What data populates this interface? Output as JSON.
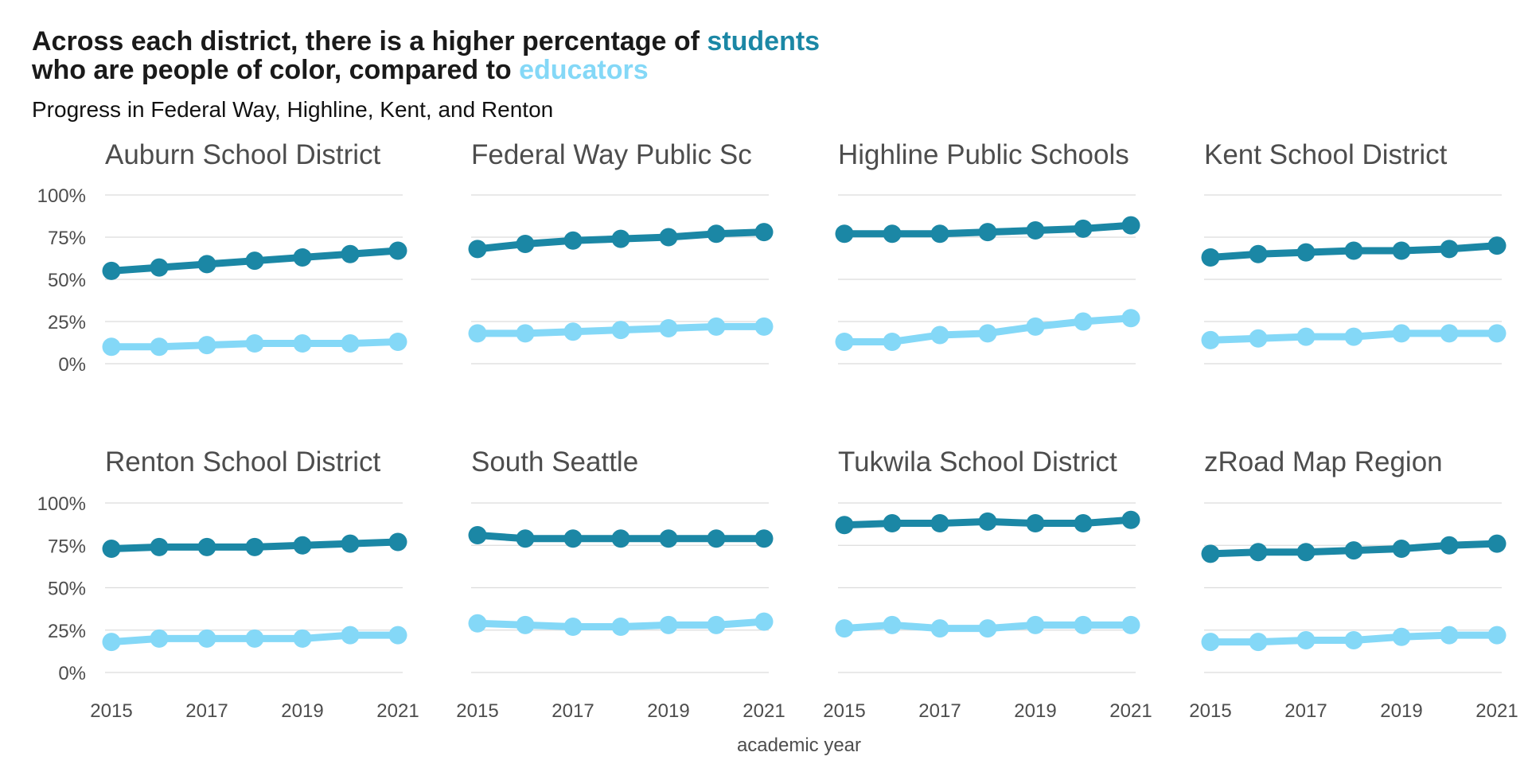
{
  "title": {
    "line1_prefix": "Across each district, there is a higher percentage of ",
    "line1_highlight": "students",
    "line2_prefix": "who are people of color, compared to ",
    "line2_highlight": "educators"
  },
  "subtitle": "Progress in Federal Way, Highline, Kent, and Renton",
  "colors": {
    "students": "#1b87a5",
    "educators": "#84d8f7",
    "grid": "#dcdcdc",
    "text": "#4d4d4d"
  },
  "chart_data": {
    "type": "line",
    "facet": true,
    "xlabel": "academic year",
    "ylabel": "",
    "x": [
      2015,
      2016,
      2017,
      2018,
      2019,
      2020,
      2021
    ],
    "xticks": [
      "2015",
      "2017",
      "2019",
      "2021"
    ],
    "ylim": [
      0,
      100
    ],
    "yticks": [
      "0%",
      "25%",
      "50%",
      "75%",
      "100%"
    ],
    "grid": true,
    "panels": [
      {
        "title": "Auburn School District",
        "series": [
          {
            "key": "students",
            "values": [
              55,
              57,
              59,
              61,
              63,
              65,
              67
            ]
          },
          {
            "key": "educators",
            "values": [
              10,
              10,
              11,
              12,
              12,
              12,
              13
            ]
          }
        ]
      },
      {
        "title": "Federal Way Public Sc",
        "series": [
          {
            "key": "students",
            "values": [
              68,
              71,
              73,
              74,
              75,
              77,
              78
            ]
          },
          {
            "key": "educators",
            "values": [
              18,
              18,
              19,
              20,
              21,
              22,
              22
            ]
          }
        ]
      },
      {
        "title": "Highline Public Schools",
        "series": [
          {
            "key": "students",
            "values": [
              77,
              77,
              77,
              78,
              79,
              80,
              82
            ]
          },
          {
            "key": "educators",
            "values": [
              13,
              13,
              17,
              18,
              22,
              25,
              27
            ]
          }
        ]
      },
      {
        "title": "Kent School District",
        "series": [
          {
            "key": "students",
            "values": [
              63,
              65,
              66,
              67,
              67,
              68,
              70
            ]
          },
          {
            "key": "educators",
            "values": [
              14,
              15,
              16,
              16,
              18,
              18,
              18
            ]
          }
        ]
      },
      {
        "title": "Renton School District",
        "series": [
          {
            "key": "students",
            "values": [
              73,
              74,
              74,
              74,
              75,
              76,
              77
            ]
          },
          {
            "key": "educators",
            "values": [
              18,
              20,
              20,
              20,
              20,
              22,
              22
            ]
          }
        ]
      },
      {
        "title": "South Seattle",
        "series": [
          {
            "key": "students",
            "values": [
              81,
              79,
              79,
              79,
              79,
              79,
              79
            ]
          },
          {
            "key": "educators",
            "values": [
              29,
              28,
              27,
              27,
              28,
              28,
              30
            ]
          }
        ]
      },
      {
        "title": "Tukwila School District",
        "series": [
          {
            "key": "students",
            "values": [
              87,
              88,
              88,
              89,
              88,
              88,
              90
            ]
          },
          {
            "key": "educators",
            "values": [
              26,
              28,
              26,
              26,
              28,
              28,
              28
            ]
          }
        ]
      },
      {
        "title": "zRoad Map Region",
        "series": [
          {
            "key": "students",
            "values": [
              70,
              71,
              71,
              72,
              73,
              75,
              76
            ]
          },
          {
            "key": "educators",
            "values": [
              18,
              18,
              19,
              19,
              21,
              22,
              22
            ]
          }
        ]
      }
    ]
  }
}
